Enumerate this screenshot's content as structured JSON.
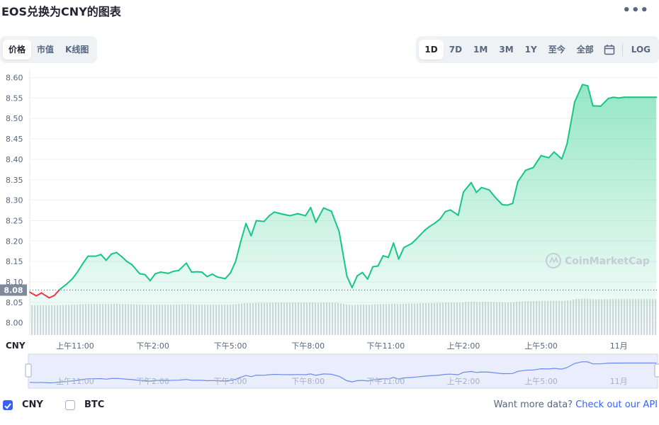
{
  "title": "EOS兑换为CNY的图表",
  "more_icon": "more-horizontal-icon",
  "view_tabs": [
    "价格",
    "市值",
    "K线图"
  ],
  "active_view": "价格",
  "range_tabs": [
    "1D",
    "7D",
    "1M",
    "3M",
    "1Y",
    "至今",
    "全部"
  ],
  "active_range": "1D",
  "calendar_icon": "calendar-icon",
  "log_label": "LOG",
  "currency_label": "CNY",
  "current_price_label": "8.08",
  "watermark": "CoinMarketCap",
  "legend": {
    "cny_label": "CNY",
    "cny_checked": true,
    "btc_label": "BTC",
    "btc_checked": false
  },
  "api_text": "Want more data?",
  "api_link": "Check out our API",
  "colors": {
    "up": "#16c784",
    "down": "#ea3943",
    "accent": "#3861fb",
    "volume": "#d6d9de",
    "navigator_line": "#6c8aee",
    "navigator_fill": "#e9edfc"
  },
  "chart_data": {
    "type": "line",
    "title": "EOS兑换为CNY的图表",
    "ylabel": "",
    "ylim": [
      7.97,
      8.62
    ],
    "y_ticks": [
      "8.60",
      "8.55",
      "8.50",
      "8.45",
      "8.40",
      "8.35",
      "8.30",
      "8.25",
      "8.20",
      "8.15",
      "8.10",
      "8.05",
      "8.00"
    ],
    "x_ticks": [
      "上午11:00",
      "下午2:00",
      "下午5:00",
      "下午8:00",
      "下午11:00",
      "上午2:00",
      "上午5:00",
      "11月"
    ],
    "x_tick_positions": [
      11,
      14,
      17,
      20,
      23,
      26,
      29,
      32
    ],
    "x_range": [
      9.25,
      33.5
    ],
    "reference_value": 8.08,
    "series": [
      {
        "x": [
          9.25,
          9.5,
          9.7,
          10.0,
          10.2,
          10.4,
          10.7,
          10.9,
          11.1,
          11.3,
          11.5,
          11.8,
          12.0,
          12.2,
          12.4,
          12.6,
          12.8,
          13.0,
          13.2,
          13.5,
          13.7,
          13.9,
          14.1,
          14.3,
          14.6,
          14.8,
          15.0,
          15.3,
          15.5,
          15.7,
          15.9,
          16.1,
          16.3,
          16.5,
          16.8,
          17.0,
          17.2,
          17.4,
          17.6,
          17.8,
          18.0,
          18.3,
          18.5,
          18.7,
          19.0,
          19.3,
          19.6,
          19.9,
          20.1,
          20.3,
          20.6,
          20.9,
          21.2,
          21.5,
          21.7,
          21.9,
          22.1,
          22.3,
          22.5,
          22.7,
          22.9,
          23.1,
          23.3,
          23.5,
          23.7,
          24.0,
          24.2,
          24.5,
          24.7,
          24.9,
          25.1,
          25.3,
          25.5,
          25.8,
          26.0,
          26.3,
          26.5,
          26.7,
          27.0,
          27.2,
          27.5,
          27.7,
          27.9,
          28.1,
          28.4,
          28.7,
          29.0,
          29.3,
          29.5,
          29.8,
          30.0,
          30.3,
          30.6,
          30.8,
          31.0,
          31.3,
          31.6,
          31.8,
          32.0,
          32.2,
          32.4,
          32.6,
          32.8,
          33.0,
          33.2,
          33.45
        ],
        "values": [
          8.075,
          8.066,
          8.073,
          8.061,
          8.067,
          8.081,
          8.096,
          8.108,
          8.125,
          8.145,
          8.163,
          8.163,
          8.167,
          8.153,
          8.168,
          8.172,
          8.162,
          8.15,
          8.142,
          8.12,
          8.118,
          8.103,
          8.12,
          8.124,
          8.121,
          8.126,
          8.128,
          8.146,
          8.124,
          8.125,
          8.124,
          8.113,
          8.119,
          8.112,
          8.108,
          8.122,
          8.15,
          8.199,
          8.243,
          8.213,
          8.25,
          8.248,
          8.262,
          8.271,
          8.266,
          8.262,
          8.267,
          8.262,
          8.282,
          8.246,
          8.281,
          8.273,
          8.223,
          8.114,
          8.086,
          8.115,
          8.123,
          8.107,
          8.137,
          8.139,
          8.164,
          8.16,
          8.195,
          8.156,
          8.184,
          8.194,
          8.206,
          8.226,
          8.236,
          8.244,
          8.254,
          8.272,
          8.276,
          8.263,
          8.32,
          8.343,
          8.319,
          8.331,
          8.325,
          8.309,
          8.289,
          8.288,
          8.292,
          8.345,
          8.373,
          8.38,
          8.409,
          8.404,
          8.418,
          8.401,
          8.437,
          8.541,
          8.583,
          8.58,
          8.531,
          8.53,
          8.549,
          8.552,
          8.55,
          8.552,
          8.552,
          8.552,
          8.552,
          8.552,
          8.552,
          8.552
        ]
      }
    ]
  }
}
